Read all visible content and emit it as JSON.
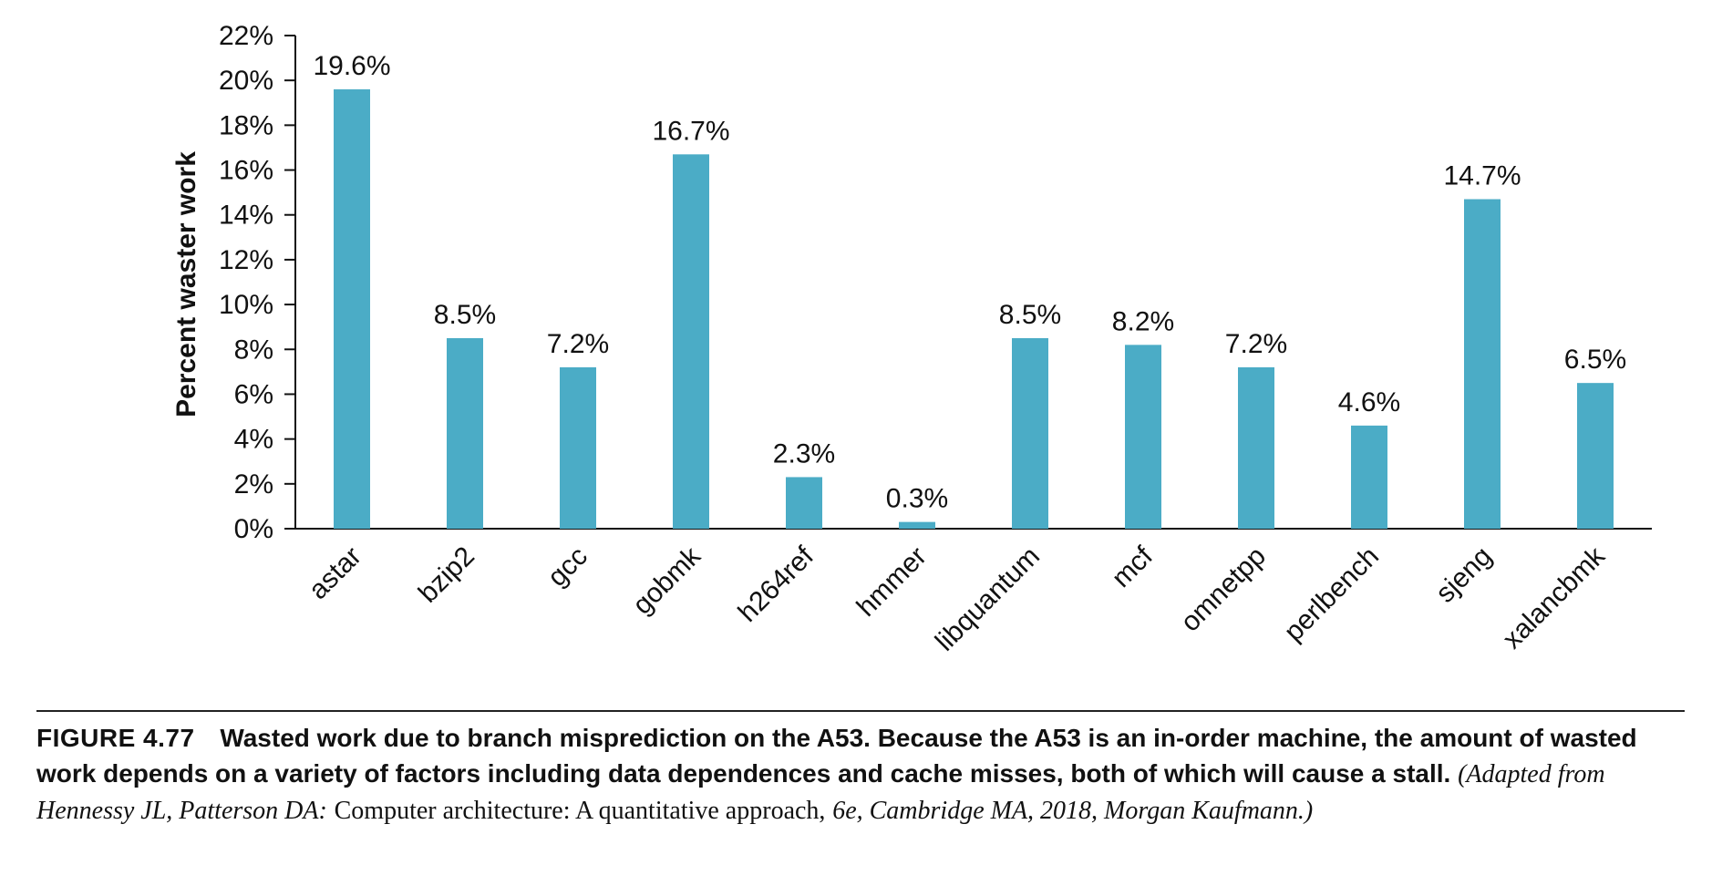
{
  "chart_data": {
    "type": "bar",
    "categories": [
      "astar",
      "bzip2",
      "gcc",
      "gobmk",
      "h264ref",
      "hmmer",
      "libquantum",
      "mcf",
      "omnetpp",
      "perlbench",
      "sjeng",
      "xalancbmk"
    ],
    "values": [
      19.6,
      8.5,
      7.2,
      16.7,
      2.3,
      0.3,
      8.5,
      8.2,
      7.2,
      4.6,
      14.7,
      6.5
    ],
    "value_labels": [
      "19.6%",
      "8.5%",
      "7.2%",
      "16.7%",
      "2.3%",
      "0.3%",
      "8.5%",
      "8.2%",
      "7.2%",
      "4.6%",
      "14.7%",
      "6.5%"
    ],
    "ylabel": "Percent waster work",
    "xlabel": "",
    "ylim": [
      0,
      22
    ],
    "yticks": [
      0,
      2,
      4,
      6,
      8,
      10,
      12,
      14,
      16,
      18,
      20,
      22
    ],
    "ytick_labels": [
      "0%",
      "2%",
      "4%",
      "6%",
      "8%",
      "10%",
      "12%",
      "14%",
      "16%",
      "18%",
      "20%",
      "22%"
    ],
    "bar_color": "#4BACC6",
    "grid": false,
    "legend": "none"
  },
  "caption": {
    "figure_number": "FIGURE 4.77",
    "bold_text": "Wasted work due to branch misprediction on the A53. Because the A53 is an in-order machine, the amount of wasted work depends on a variety of factors including data dependences and cache misses, both of which will cause a stall.",
    "source_prefix": "(Adapted from Hennessy JL, Patterson DA:",
    "source_title": "Computer architecture: A quantitative approach,",
    "source_suffix": "6e, Cambridge MA, 2018, Morgan Kaufmann.)"
  }
}
